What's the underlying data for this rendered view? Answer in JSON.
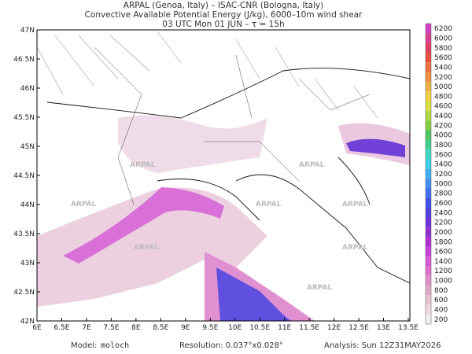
{
  "header": {
    "lines": [
      "ARPAL (Genoa, Italy)  –  ISAC-CNR (Bologna, Italy)",
      "Convective Available Potential Energy (J/kg), 6000–10m wind shear",
      "03 UTC Mon 01 JUN  –  τ = 15h"
    ]
  },
  "map": {
    "lat_labels": [
      "47N",
      "46.5N",
      "46N",
      "45.5N",
      "45N",
      "44.5N",
      "44N",
      "43.5N",
      "43N",
      "42.5N",
      "42N"
    ],
    "lon_labels": [
      "6E",
      "6.5E",
      "7E",
      "7.5E",
      "8E",
      "8.5E",
      "9E",
      "9.5E",
      "10E",
      "10.5E",
      "11E",
      "11.5E",
      "12E",
      "12.5E",
      "13E",
      "13.5E"
    ],
    "watermark": "ARPAL"
  },
  "colorbar": {
    "levels": [
      6200,
      6000,
      5800,
      5600,
      5400,
      5200,
      5000,
      4800,
      4600,
      4400,
      4200,
      4000,
      3800,
      3600,
      3400,
      3200,
      3000,
      2800,
      2600,
      2400,
      2200,
      2000,
      1800,
      1600,
      1400,
      1200,
      1000,
      800,
      600,
      400,
      200
    ],
    "colors": [
      "#d040c0",
      "#d84090",
      "#e04060",
      "#e85040",
      "#f07040",
      "#f09040",
      "#f0b040",
      "#f0d040",
      "#d8e040",
      "#b0d840",
      "#80d040",
      "#50c860",
      "#40d090",
      "#40d8c0",
      "#40d0e8",
      "#40b0f0",
      "#4090f0",
      "#4070f0",
      "#4050e8",
      "#5040e0",
      "#7030d8",
      "#9030d0",
      "#b030d0",
      "#c840d8",
      "#d858d8",
      "#e070d0",
      "#e090c8",
      "#e0a8c8",
      "#e8c0d0",
      "#f0d8e0",
      "#f2f2f2"
    ]
  },
  "footer": {
    "model_label": "Model:",
    "model": "moloch",
    "resolution": "Resolution: 0.037°x0.028°",
    "analysis": "Analysis: Sun 12Z31MAY2026"
  }
}
